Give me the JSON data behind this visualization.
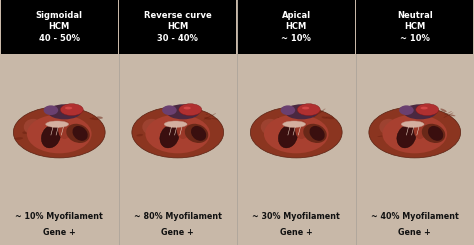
{
  "panels": [
    {
      "title": "Sigmoidal\nHCM\n40 - 50%",
      "bottom_line1": "~ 10% Myofilament",
      "bottom_line2": "Gene +"
    },
    {
      "title": "Reverse curve\nHCM\n30 - 40%",
      "bottom_line1": "~ 80% Myofilament",
      "bottom_line2": "Gene +"
    },
    {
      "title": "Apical\nHCM\n~ 10%",
      "bottom_line1": "~ 30% Myofilament",
      "bottom_line2": "Gene +"
    },
    {
      "title": "Neutral\nHCM\n~ 10%",
      "bottom_line1": "~ 40% Myofilament",
      "bottom_line2": "Gene +"
    }
  ],
  "fig_bg": "#c8b8a8",
  "label_bg": "#000000",
  "label_fg": "#ffffff",
  "bottom_fg": "#111111",
  "heart_colors": {
    "outer": "#8B3520",
    "mid": "#A84030",
    "inner_dark": "#3a0f0f",
    "inner_light": "#c05040",
    "vessel_dark": "#4a2840",
    "aorta": "#b03030",
    "valve_light": "#d4b0a0",
    "highlight": "#e8c0a0"
  },
  "figsize": [
    4.74,
    2.45
  ],
  "dpi": 100
}
